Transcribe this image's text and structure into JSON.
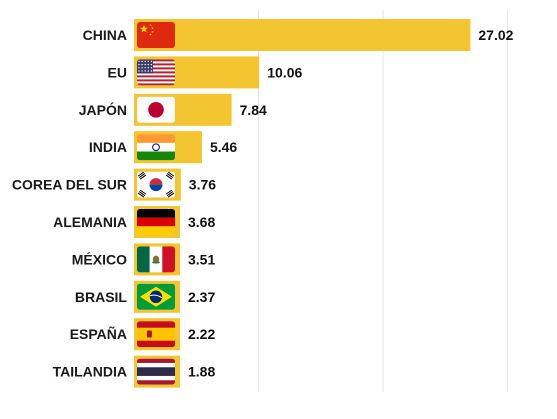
{
  "chart_data": {
    "type": "bar",
    "orientation": "horizontal",
    "title": "",
    "xlabel": "",
    "ylabel": "",
    "xlim": [
      0,
      30
    ],
    "grid": true,
    "bar_color": "#f2c531",
    "gridline_color": "#e6e6e6",
    "categories": [
      "CHINA",
      "EU",
      "JAPÓN",
      "INDIA",
      "COREA DEL SUR",
      "ALEMANIA",
      "MÉXICO",
      "BRASIL",
      "ESPAÑA",
      "TAILANDIA"
    ],
    "values": [
      27.02,
      10.06,
      7.84,
      5.46,
      3.76,
      3.68,
      3.51,
      2.37,
      2.22,
      1.88
    ],
    "value_labels": [
      "27.02",
      "10.06",
      "7.84",
      "5.46",
      "3.76",
      "3.68",
      "3.51",
      "2.37",
      "2.22",
      "1.88"
    ],
    "flags": [
      "china-flag-icon",
      "usa-flag-icon",
      "japan-flag-icon",
      "india-flag-icon",
      "south-korea-flag-icon",
      "germany-flag-icon",
      "mexico-flag-icon",
      "brazil-flag-icon",
      "spain-flag-icon",
      "thailand-flag-icon"
    ]
  }
}
